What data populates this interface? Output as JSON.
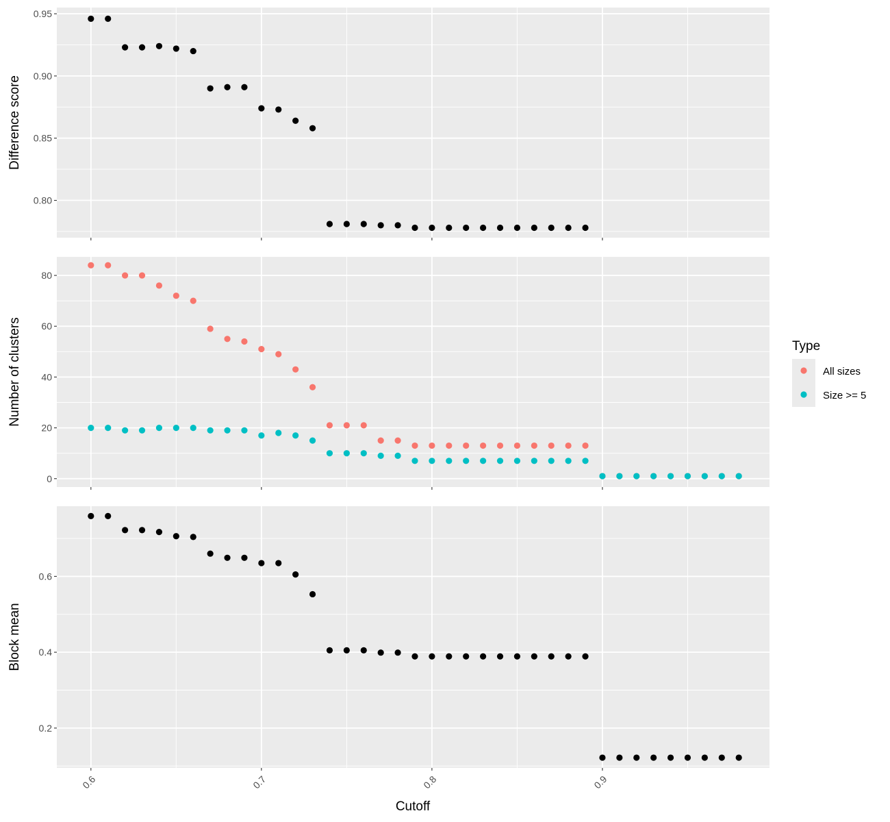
{
  "chart_data": {
    "type": "scatter",
    "x_label": "Cutoff",
    "x_ticks": [
      "0.6",
      "0.7",
      "0.8",
      "0.9"
    ],
    "x_lim": [
      0.58,
      0.998
    ],
    "legend": {
      "title": "Type",
      "placement": "right",
      "entries": [
        {
          "label": "All sizes",
          "color": "#F8766D"
        },
        {
          "label": "Size >= 5",
          "color": "#00BFC4"
        }
      ]
    },
    "panels": [
      {
        "ylabel": "Difference score",
        "ylim": [
          0.77,
          0.955
        ],
        "yticks": [
          "0.80",
          "0.85",
          "0.90",
          "0.95"
        ],
        "series": [
          {
            "color": "#000000",
            "x": [
              0.6,
              0.61,
              0.62,
              0.63,
              0.64,
              0.65,
              0.66,
              0.67,
              0.68,
              0.69,
              0.7,
              0.71,
              0.72,
              0.73,
              0.74,
              0.75,
              0.76,
              0.77,
              0.78,
              0.79,
              0.8,
              0.81,
              0.82,
              0.83,
              0.84,
              0.85,
              0.86,
              0.87,
              0.88,
              0.89
            ],
            "y": [
              0.946,
              0.946,
              0.923,
              0.923,
              0.924,
              0.922,
              0.92,
              0.89,
              0.891,
              0.891,
              0.874,
              0.873,
              0.864,
              0.858,
              0.781,
              0.781,
              0.781,
              0.78,
              0.78,
              0.778,
              0.778,
              0.778,
              0.778,
              0.778,
              0.778,
              0.778,
              0.778,
              0.778,
              0.778,
              0.778
            ]
          }
        ]
      },
      {
        "ylabel": "Number of clusters",
        "ylim": [
          -3.3,
          87.3
        ],
        "yticks": [
          "0",
          "20",
          "40",
          "60",
          "80"
        ],
        "series": [
          {
            "name": "All sizes",
            "color": "#F8766D",
            "x": [
              0.6,
              0.61,
              0.62,
              0.63,
              0.64,
              0.65,
              0.66,
              0.67,
              0.68,
              0.69,
              0.7,
              0.71,
              0.72,
              0.73,
              0.74,
              0.75,
              0.76,
              0.77,
              0.78,
              0.79,
              0.8,
              0.81,
              0.82,
              0.83,
              0.84,
              0.85,
              0.86,
              0.87,
              0.88,
              0.89,
              0.9,
              0.91,
              0.92,
              0.93,
              0.94,
              0.95,
              0.96,
              0.97,
              0.98
            ],
            "y": [
              84,
              84,
              80,
              80,
              76,
              72,
              70,
              59,
              55,
              54,
              51,
              49,
              43,
              36,
              21,
              21,
              21,
              15,
              15,
              13,
              13,
              13,
              13,
              13,
              13,
              13,
              13,
              13,
              13,
              13,
              1,
              1,
              1,
              1,
              1,
              1,
              1,
              1,
              1
            ]
          },
          {
            "name": "Size >= 5",
            "color": "#00BFC4",
            "x": [
              0.6,
              0.61,
              0.62,
              0.63,
              0.64,
              0.65,
              0.66,
              0.67,
              0.68,
              0.69,
              0.7,
              0.71,
              0.72,
              0.73,
              0.74,
              0.75,
              0.76,
              0.77,
              0.78,
              0.79,
              0.8,
              0.81,
              0.82,
              0.83,
              0.84,
              0.85,
              0.86,
              0.87,
              0.88,
              0.89,
              0.9,
              0.91,
              0.92,
              0.93,
              0.94,
              0.95,
              0.96,
              0.97,
              0.98
            ],
            "y": [
              20,
              20,
              19,
              19,
              20,
              20,
              20,
              19,
              19,
              19,
              17,
              18,
              17,
              15,
              10,
              10,
              10,
              9,
              9,
              7,
              7,
              7,
              7,
              7,
              7,
              7,
              7,
              7,
              7,
              7,
              1,
              1,
              1,
              1,
              1,
              1,
              1,
              1,
              1
            ]
          }
        ]
      },
      {
        "ylabel": "Block mean",
        "ylim": [
          0.095,
          0.785
        ],
        "yticks": [
          "0.2",
          "0.4",
          "0.6"
        ],
        "series": [
          {
            "color": "#000000",
            "x": [
              0.6,
              0.61,
              0.62,
              0.63,
              0.64,
              0.65,
              0.66,
              0.67,
              0.68,
              0.69,
              0.7,
              0.71,
              0.72,
              0.73,
              0.74,
              0.75,
              0.76,
              0.77,
              0.78,
              0.79,
              0.8,
              0.81,
              0.82,
              0.83,
              0.84,
              0.85,
              0.86,
              0.87,
              0.88,
              0.89,
              0.9,
              0.91,
              0.92,
              0.93,
              0.94,
              0.95,
              0.96,
              0.97,
              0.98
            ],
            "y": [
              0.759,
              0.759,
              0.722,
              0.722,
              0.717,
              0.706,
              0.704,
              0.66,
              0.649,
              0.649,
              0.635,
              0.635,
              0.605,
              0.553,
              0.405,
              0.405,
              0.405,
              0.399,
              0.399,
              0.389,
              0.389,
              0.389,
              0.389,
              0.389,
              0.389,
              0.389,
              0.389,
              0.389,
              0.389,
              0.389,
              0.122,
              0.122,
              0.122,
              0.122,
              0.122,
              0.122,
              0.122,
              0.122,
              0.122
            ]
          }
        ]
      }
    ]
  }
}
